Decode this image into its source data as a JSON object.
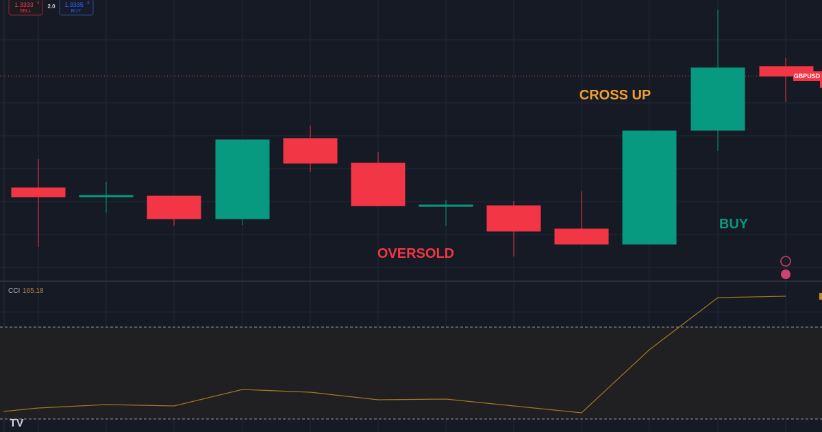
{
  "order_panel": {
    "sell_price_main": "1.3333",
    "sell_price_small": "4",
    "sell_label": "SELL",
    "spread": "2.0",
    "buy_price_main": "1.3335",
    "buy_price_small": "4",
    "buy_label": "BUY"
  },
  "symbol_label": "GBPUSD",
  "annotations": {
    "cross_up": "CROSS UP",
    "oversold": "OVERSOLD",
    "buy": "BUY"
  },
  "indicator": {
    "name": "CCI",
    "value": "165.18"
  }
}
